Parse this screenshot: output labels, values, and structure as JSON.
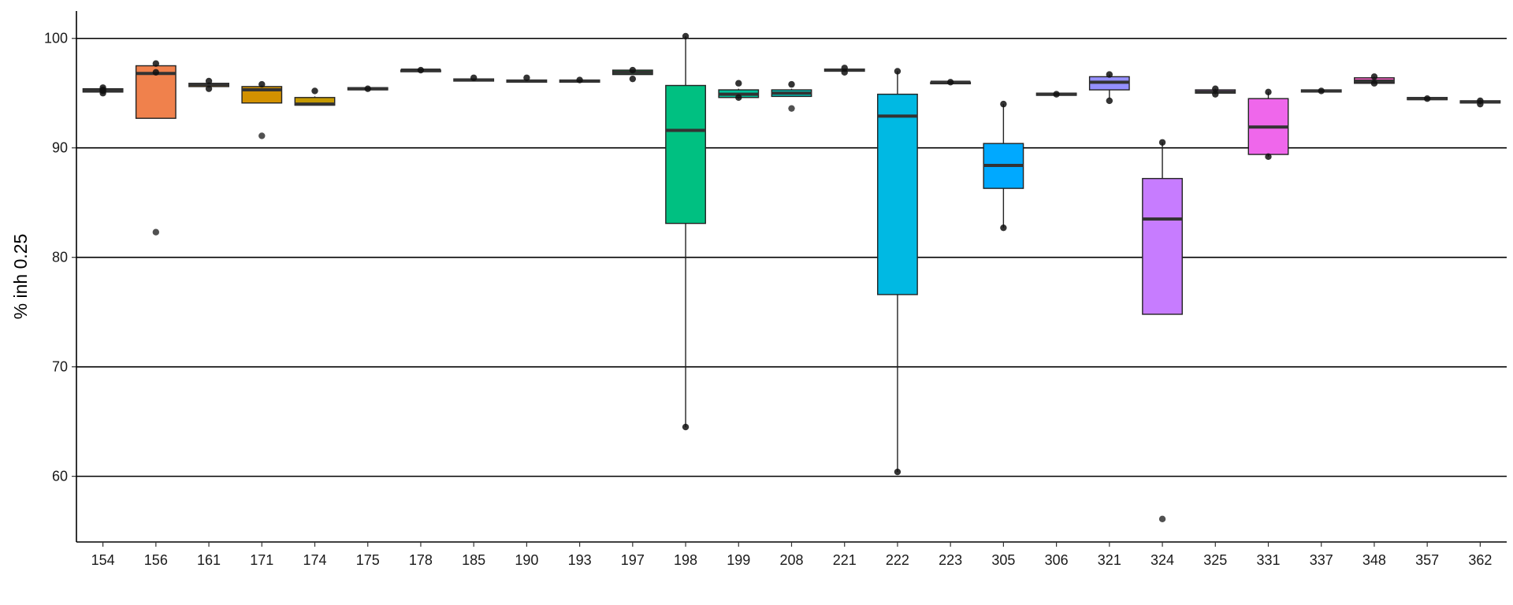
{
  "chart_data": {
    "type": "boxplot",
    "title": "",
    "xlabel": "",
    "ylabel": "% inh 0.25",
    "ylim": [
      54,
      102.5
    ],
    "yticks": [
      60,
      70,
      80,
      90,
      100
    ],
    "grid": "horizontal major lines",
    "legend": "none",
    "categories": [
      "154",
      "156",
      "161",
      "171",
      "174",
      "175",
      "178",
      "185",
      "190",
      "193",
      "197",
      "198",
      "199",
      "208",
      "221",
      "222",
      "223",
      "305",
      "306",
      "321",
      "324",
      "325",
      "331",
      "337",
      "348",
      "357",
      "362"
    ],
    "boxes": [
      {
        "category": "154",
        "color": "#F8766D",
        "q1": 95.1,
        "median": 95.25,
        "q3": 95.4,
        "whisker_low": 95.1,
        "whisker_high": 95.4,
        "points": [
          95.2,
          95.3,
          95.5,
          95.0
        ],
        "outliers": []
      },
      {
        "category": "156",
        "color": "#F0814C",
        "q1": 92.7,
        "median": 96.8,
        "q3": 97.5,
        "whisker_low": 92.7,
        "whisker_high": 97.6,
        "points": [
          97.7,
          96.9
        ],
        "outliers": [
          82.3
        ]
      },
      {
        "category": "161",
        "color": "#E38900",
        "q1": 95.6,
        "median": 95.8,
        "q3": 95.9,
        "whisker_low": 95.5,
        "whisker_high": 96.0,
        "points": [
          96.1,
          95.4
        ],
        "outliers": []
      },
      {
        "category": "171",
        "color": "#D29100",
        "q1": 94.1,
        "median": 95.3,
        "q3": 95.6,
        "whisker_low": 94.1,
        "whisker_high": 95.7,
        "points": [
          95.8
        ],
        "outliers": [
          91.1
        ]
      },
      {
        "category": "174",
        "color": "#C59900",
        "q1": 93.9,
        "median": 94.0,
        "q3": 94.6,
        "whisker_low": 93.9,
        "whisker_high": 94.7,
        "points": [
          95.2
        ],
        "outliers": []
      },
      {
        "category": "175",
        "color": "#B79F00",
        "q1": 95.3,
        "median": 95.4,
        "q3": 95.5,
        "whisker_low": 95.3,
        "whisker_high": 95.5,
        "points": [
          95.4
        ],
        "outliers": []
      },
      {
        "category": "178",
        "color": "#A3A500",
        "q1": 97.0,
        "median": 97.1,
        "q3": 97.1,
        "whisker_low": 97.0,
        "whisker_high": 97.1,
        "points": [
          97.1
        ],
        "outliers": []
      },
      {
        "category": "185",
        "color": "#8EAB00",
        "q1": 96.1,
        "median": 96.2,
        "q3": 96.3,
        "whisker_low": 96.1,
        "whisker_high": 96.3,
        "points": [
          96.4
        ],
        "outliers": []
      },
      {
        "category": "190",
        "color": "#6BB100",
        "q1": 96.0,
        "median": 96.1,
        "q3": 96.2,
        "whisker_low": 96.0,
        "whisker_high": 96.2,
        "points": [
          96.4
        ],
        "outliers": []
      },
      {
        "category": "193",
        "color": "#39B600",
        "q1": 96.0,
        "median": 96.1,
        "q3": 96.2,
        "whisker_low": 96.0,
        "whisker_high": 96.2,
        "points": [
          96.2
        ],
        "outliers": []
      },
      {
        "category": "197",
        "color": "#00BA38",
        "q1": 96.7,
        "median": 96.9,
        "q3": 97.1,
        "whisker_low": 96.7,
        "whisker_high": 97.1,
        "points": [
          96.3,
          97.1
        ],
        "outliers": []
      },
      {
        "category": "198",
        "color": "#00C081",
        "q1": 83.1,
        "median": 91.6,
        "q3": 95.7,
        "whisker_low": 64.5,
        "whisker_high": 100.2,
        "points": [
          100.2,
          64.5
        ],
        "outliers": []
      },
      {
        "category": "199",
        "color": "#00C19A",
        "q1": 94.6,
        "median": 94.9,
        "q3": 95.3,
        "whisker_low": 94.5,
        "whisker_high": 95.4,
        "points": [
          95.9,
          94.6
        ],
        "outliers": []
      },
      {
        "category": "208",
        "color": "#00BFB4",
        "q1": 94.7,
        "median": 95.0,
        "q3": 95.3,
        "whisker_low": 94.7,
        "whisker_high": 95.4,
        "points": [
          95.8
        ],
        "outliers": [
          93.6
        ]
      },
      {
        "category": "221",
        "color": "#00BCD8",
        "q1": 97.0,
        "median": 97.1,
        "q3": 97.2,
        "whisker_low": 97.0,
        "whisker_high": 97.2,
        "points": [
          97.3,
          96.9
        ],
        "outliers": []
      },
      {
        "category": "222",
        "color": "#00B9E3",
        "q1": 76.6,
        "median": 92.9,
        "q3": 94.9,
        "whisker_low": 60.4,
        "whisker_high": 97.0,
        "points": [
          97.0,
          60.4
        ],
        "outliers": []
      },
      {
        "category": "223",
        "color": "#00B0F6",
        "q1": 95.9,
        "median": 96.0,
        "q3": 96.0,
        "whisker_low": 95.9,
        "whisker_high": 96.0,
        "points": [
          96.0
        ],
        "outliers": []
      },
      {
        "category": "305",
        "color": "#00A9FF",
        "q1": 86.3,
        "median": 88.4,
        "q3": 90.4,
        "whisker_low": 82.7,
        "whisker_high": 94.0,
        "points": [
          94.0,
          82.7
        ],
        "outliers": []
      },
      {
        "category": "306",
        "color": "#619CFF",
        "q1": 94.8,
        "median": 94.9,
        "q3": 95.0,
        "whisker_low": 94.8,
        "whisker_high": 95.0,
        "points": [
          94.9
        ],
        "outliers": []
      },
      {
        "category": "321",
        "color": "#9590FF",
        "q1": 95.3,
        "median": 96.0,
        "q3": 96.5,
        "whisker_low": 94.5,
        "whisker_high": 96.7,
        "points": [
          96.7,
          94.3
        ],
        "outliers": []
      },
      {
        "category": "324",
        "color": "#C77CFF",
        "q1": 74.8,
        "median": 83.5,
        "q3": 87.2,
        "whisker_low": 74.8,
        "whisker_high": 90.5,
        "points": [
          90.5
        ],
        "outliers": [
          56.1
        ]
      },
      {
        "category": "325",
        "color": "#DB72FB",
        "q1": 95.0,
        "median": 95.1,
        "q3": 95.3,
        "whisker_low": 94.9,
        "whisker_high": 95.4,
        "points": [
          95.4,
          94.9
        ],
        "outliers": []
      },
      {
        "category": "331",
        "color": "#EF67EB",
        "q1": 89.4,
        "median": 91.9,
        "q3": 94.5,
        "whisker_low": 89.2,
        "whisker_high": 95.1,
        "points": [
          95.1,
          89.2
        ],
        "outliers": []
      },
      {
        "category": "337",
        "color": "#F763E0",
        "q1": 95.1,
        "median": 95.2,
        "q3": 95.3,
        "whisker_low": 95.1,
        "whisker_high": 95.3,
        "points": [
          95.2
        ],
        "outliers": []
      },
      {
        "category": "348",
        "color": "#FF61C9",
        "q1": 95.9,
        "median": 96.1,
        "q3": 96.4,
        "whisker_low": 95.9,
        "whisker_high": 96.5,
        "points": [
          96.5,
          95.9
        ],
        "outliers": []
      },
      {
        "category": "357",
        "color": "#FF62BC",
        "q1": 94.4,
        "median": 94.5,
        "q3": 94.6,
        "whisker_low": 94.4,
        "whisker_high": 94.6,
        "points": [
          94.5
        ],
        "outliers": []
      },
      {
        "category": "362",
        "color": "#FF65AE",
        "q1": 94.1,
        "median": 94.2,
        "q3": 94.3,
        "whisker_low": 94.0,
        "whisker_high": 94.4,
        "points": [
          94.3,
          94.0
        ],
        "outliers": []
      }
    ]
  }
}
